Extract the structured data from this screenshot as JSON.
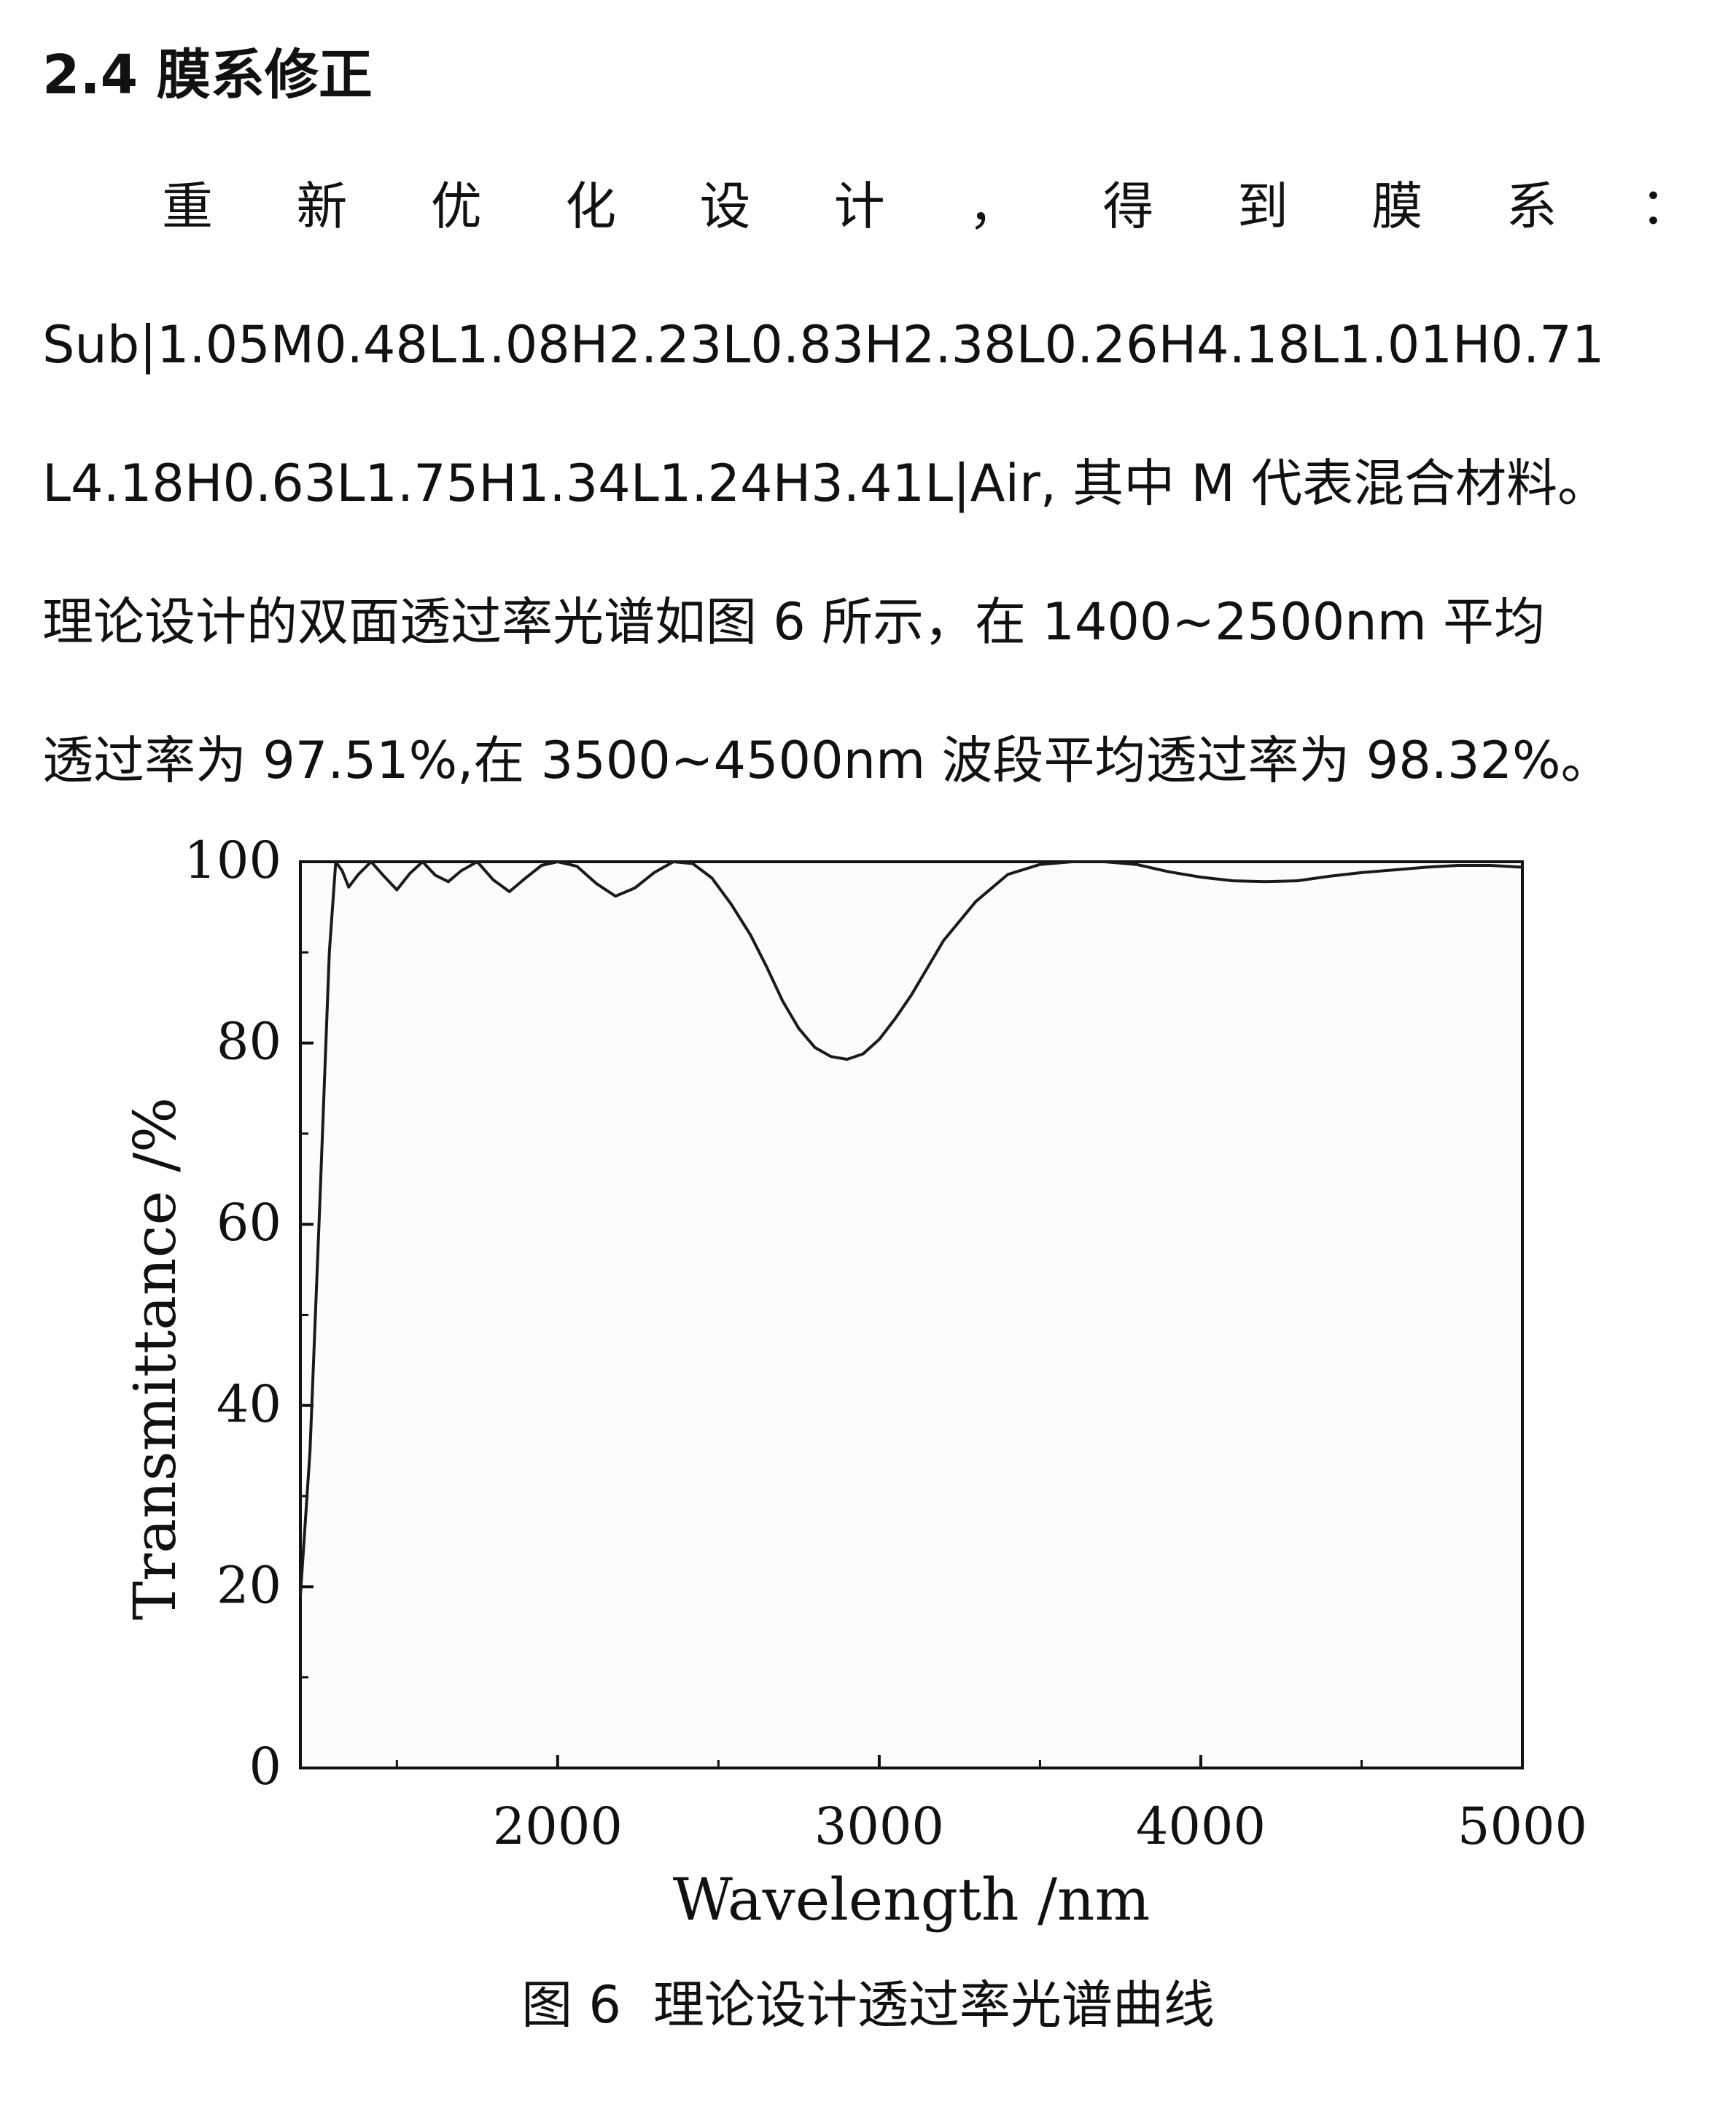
{
  "section": {
    "heading": "2.4  膜系修正"
  },
  "paragraph": {
    "line1_chars": [
      "重",
      "新",
      "优",
      "化",
      "设",
      "计",
      "，",
      "得",
      "到",
      "膜",
      "系",
      "："
    ],
    "line2": "Sub|1.05M0.48L1.08H2.23L0.83H2.38L0.26H4.18L1.01H0.71",
    "line3": "L4.18H0.63L1.75H1.34L1.24H3.41L|Air, 其中 M 代表混合材料。",
    "line4": "理论设计的双面透过率光谱如图 6 所示，在 1400~2500nm 平均",
    "line5": "透过率为 97.51%,在 3500~4500nm 波段平均透过率为 98.32%。"
  },
  "figure": {
    "caption_label": "图 6",
    "caption_text": "理论设计透过率光谱曲线"
  },
  "chart_data": {
    "type": "line",
    "title": "",
    "xlabel": "Wavelength /nm",
    "ylabel": "Transmittance /%",
    "xlim": [
      1200,
      5000
    ],
    "ylim": [
      0,
      100
    ],
    "x_ticks": [
      2000,
      3000,
      4000,
      5000
    ],
    "y_ticks": [
      0,
      20,
      40,
      60,
      80,
      100
    ],
    "grid": false,
    "series": [
      {
        "color": "#1a1a1a",
        "x": [
          1200,
          1230,
          1260,
          1290,
          1310,
          1330,
          1350,
          1380,
          1420,
          1460,
          1500,
          1540,
          1580,
          1620,
          1660,
          1700,
          1750,
          1800,
          1850,
          1900,
          1950,
          2000,
          2060,
          2120,
          2180,
          2240,
          2300,
          2360,
          2420,
          2480,
          2540,
          2600,
          2650,
          2700,
          2750,
          2800,
          2850,
          2900,
          2950,
          3000,
          3050,
          3100,
          3150,
          3200,
          3300,
          3400,
          3500,
          3600,
          3700,
          3800,
          3900,
          4000,
          4100,
          4200,
          4300,
          4400,
          4500,
          4600,
          4700,
          4800,
          4900,
          5000
        ],
        "values": [
          19,
          35,
          62,
          90,
          100,
          99,
          97.2,
          98.6,
          100,
          98.4,
          96.9,
          98.7,
          100,
          98.5,
          97.8,
          99,
          100,
          98,
          96.7,
          98.2,
          99.6,
          100,
          99.5,
          97.6,
          96.2,
          97.1,
          98.8,
          100,
          99.8,
          98.2,
          95.3,
          91.9,
          88.4,
          84.6,
          81.6,
          79.5,
          78.5,
          78.2,
          78.8,
          80.4,
          82.7,
          85.3,
          88.3,
          91.3,
          95.6,
          98.6,
          99.7,
          100,
          100,
          99.7,
          98.9,
          98.3,
          97.9,
          97.8,
          97.9,
          98.4,
          98.8,
          99.1,
          99.4,
          99.6,
          99.6,
          99.4
        ]
      }
    ]
  }
}
